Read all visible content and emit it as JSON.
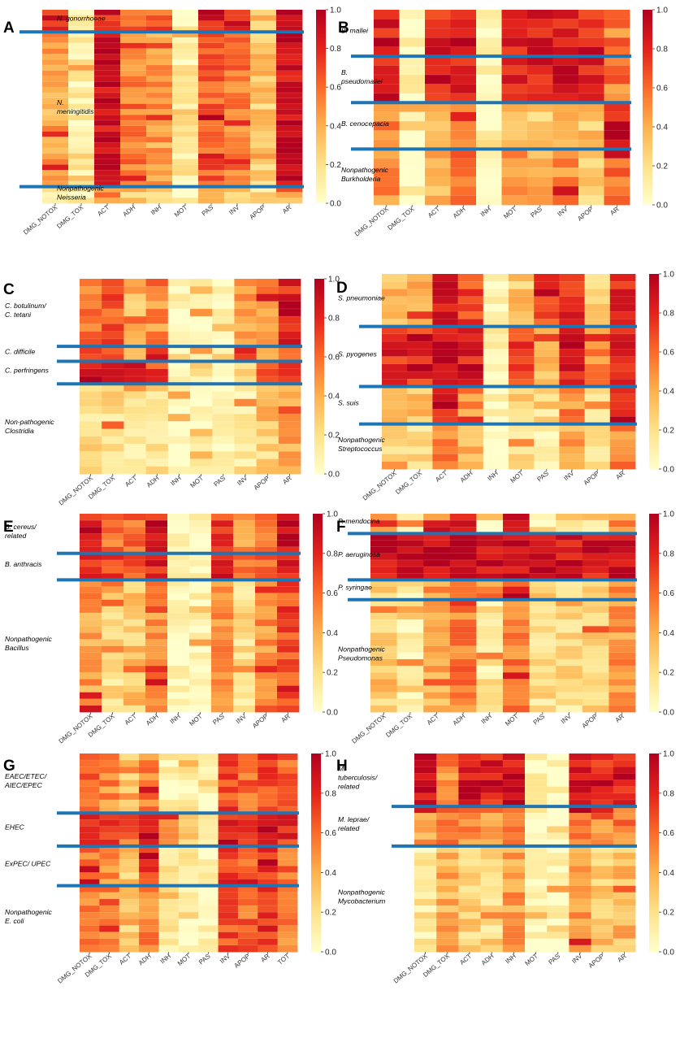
{
  "colorscale": {
    "stops": [
      "#ffffcc",
      "#fee28a",
      "#fdb14f",
      "#fb6a2a",
      "#e3221c",
      "#b1001f"
    ],
    "ticks": [
      "1.0",
      "0.8",
      "0.6",
      "0.4",
      "0.2",
      "0.0"
    ]
  },
  "separator_color": "#1f74b4",
  "chart_data": [
    {
      "type": "heatmap",
      "panel": "A",
      "columns": [
        "DMG_NOTOX",
        "DMG_TOX",
        "ACT",
        "ADH",
        "INH",
        "MOT",
        "PAS",
        "INV",
        "APOP",
        "AR"
      ],
      "value_range": [
        0,
        1
      ],
      "groups": [
        {
          "label": "N. gonorrhoeae",
          "rows": 4,
          "profile": [
            0.82,
            0.12,
            0.8,
            0.6,
            0.6,
            0.12,
            0.85,
            0.82,
            0.3,
            0.92
          ]
        },
        {
          "label": "N. meningitidis",
          "rows": 28,
          "profile": [
            0.42,
            0.1,
            0.9,
            0.55,
            0.45,
            0.12,
            0.62,
            0.55,
            0.3,
            0.9
          ]
        },
        {
          "label": "Nonpathogenic Neisseria",
          "rows": 3,
          "profile": [
            0.2,
            0.08,
            0.4,
            0.3,
            0.2,
            0.05,
            0.3,
            0.3,
            0.2,
            0.4
          ]
        }
      ]
    },
    {
      "type": "heatmap",
      "panel": "B",
      "columns": [
        "DMG_NOTOX",
        "DMG_TOX",
        "ACT",
        "ADH",
        "INH",
        "MOT",
        "PAS",
        "INV",
        "APOP",
        "AR"
      ],
      "value_range": [
        0,
        1
      ],
      "groups": [
        {
          "label": "B. mallei",
          "rows": 5,
          "profile": [
            0.82,
            0.05,
            0.8,
            0.88,
            0.05,
            0.8,
            0.85,
            0.85,
            0.75,
            0.55
          ]
        },
        {
          "label": "B. pseudomallei",
          "rows": 5,
          "profile": [
            0.85,
            0.05,
            0.82,
            0.85,
            0.05,
            0.82,
            0.85,
            0.85,
            0.8,
            0.55
          ]
        },
        {
          "label": "B. cenocepacia",
          "rows": 5,
          "profile": [
            0.5,
            0.05,
            0.4,
            0.45,
            0.05,
            0.35,
            0.3,
            0.35,
            0.3,
            0.85
          ]
        },
        {
          "label": "Nonpathogenic Burkholderia",
          "rows": 6,
          "profile": [
            0.5,
            0.05,
            0.4,
            0.55,
            0.05,
            0.5,
            0.4,
            0.5,
            0.3,
            0.6
          ]
        }
      ]
    },
    {
      "type": "heatmap",
      "panel": "C",
      "columns": [
        "DMG_NOTOX",
        "DMG_TOX",
        "ACT",
        "ADH",
        "INH",
        "MOT",
        "PAS",
        "INV",
        "APOP",
        "AR"
      ],
      "value_range": [
        0,
        1
      ],
      "groups": [
        {
          "label": "C. botulinum/ C. tetani",
          "rows": 9,
          "profile": [
            0.55,
            0.65,
            0.35,
            0.5,
            0.05,
            0.05,
            0.05,
            0.45,
            0.5,
            0.8
          ]
        },
        {
          "label": "C. difficile",
          "rows": 2,
          "profile": [
            0.65,
            0.7,
            0.2,
            0.8,
            0.05,
            0.05,
            0.05,
            0.75,
            0.3,
            0.7
          ]
        },
        {
          "label": "C. perfringens",
          "rows": 3,
          "profile": [
            0.9,
            0.9,
            0.85,
            0.7,
            0.05,
            0.05,
            0.05,
            0.25,
            0.6,
            0.75
          ]
        },
        {
          "label": "Non-pathogenic Clostridia",
          "rows": 12,
          "profile": [
            0.2,
            0.2,
            0.15,
            0.2,
            0.05,
            0.05,
            0.05,
            0.15,
            0.25,
            0.4
          ]
        }
      ]
    },
    {
      "type": "heatmap",
      "panel": "D",
      "columns": [
        "DMG_NOTOX",
        "DMG_TOX",
        "ACT",
        "ADH",
        "INH",
        "MOT",
        "PAS",
        "INV",
        "APOP",
        "AR"
      ],
      "value_range": [
        0,
        1
      ],
      "groups": [
        {
          "label": "S. pneumoniae",
          "rows": 7,
          "profile": [
            0.35,
            0.35,
            0.82,
            0.7,
            0.05,
            0.3,
            0.7,
            0.75,
            0.25,
            0.8
          ]
        },
        {
          "label": "S. pyogenes",
          "rows": 8,
          "profile": [
            0.75,
            0.75,
            0.88,
            0.8,
            0.05,
            0.75,
            0.35,
            0.85,
            0.5,
            0.8
          ]
        },
        {
          "label": "S. suis",
          "rows": 5,
          "profile": [
            0.3,
            0.3,
            0.85,
            0.5,
            0.05,
            0.25,
            0.2,
            0.5,
            0.2,
            0.75
          ]
        },
        {
          "label": "Nonpathogenic Streptococcus",
          "rows": 6,
          "profile": [
            0.2,
            0.2,
            0.5,
            0.35,
            0.05,
            0.2,
            0.15,
            0.4,
            0.15,
            0.5
          ]
        }
      ]
    },
    {
      "type": "heatmap",
      "panel": "E",
      "columns": [
        "DMG_NOTOX",
        "DMG_TOX",
        "ACT",
        "ADH",
        "INH",
        "MOT",
        "PAS",
        "INV",
        "APOP",
        "AR"
      ],
      "value_range": [
        0,
        1
      ],
      "groups": [
        {
          "label": "B. cereus/ related",
          "rows": 6,
          "profile": [
            0.8,
            0.6,
            0.6,
            0.82,
            0.05,
            0.05,
            0.7,
            0.5,
            0.6,
            0.85
          ]
        },
        {
          "label": "B. anthracis",
          "rows": 4,
          "profile": [
            0.75,
            0.7,
            0.7,
            0.8,
            0.05,
            0.05,
            0.75,
            0.55,
            0.6,
            0.82
          ]
        },
        {
          "label": "Nonpathogenic Bacillus",
          "rows": 20,
          "profile": [
            0.45,
            0.2,
            0.3,
            0.5,
            0.05,
            0.05,
            0.5,
            0.2,
            0.5,
            0.65
          ]
        }
      ]
    },
    {
      "type": "heatmap",
      "panel": "F",
      "columns": [
        "DMG_NOTOX",
        "DMG_TOX",
        "ACT",
        "ADH",
        "INH",
        "MOT",
        "PAS",
        "INV",
        "APOP",
        "AR"
      ],
      "value_range": [
        0,
        1
      ],
      "groups": [
        {
          "label": "P. mendocina",
          "rows": 3,
          "profile": [
            0.45,
            0.15,
            0.5,
            0.85,
            0.05,
            0.85,
            0.15,
            0.25,
            0.15,
            0.5
          ]
        },
        {
          "label": "P. aeruginosa",
          "rows": 7,
          "profile": [
            0.88,
            0.88,
            0.9,
            0.9,
            0.88,
            0.88,
            0.88,
            0.85,
            0.85,
            0.88
          ]
        },
        {
          "label": "P. syringae",
          "rows": 3,
          "profile": [
            0.3,
            0.15,
            0.45,
            0.6,
            0.5,
            0.7,
            0.3,
            0.2,
            0.2,
            0.5
          ]
        },
        {
          "label": "Nonpathogenic Pseudomonas",
          "rows": 17,
          "profile": [
            0.3,
            0.1,
            0.4,
            0.55,
            0.15,
            0.55,
            0.2,
            0.2,
            0.25,
            0.45
          ]
        }
      ]
    },
    {
      "type": "heatmap",
      "panel": "G",
      "columns": [
        "DMG_NOTOX",
        "DMG_TOX",
        "ACT",
        "ADH",
        "INH",
        "MOT",
        "PAS",
        "INV",
        "APOP",
        "AR",
        "TOT"
      ],
      "value_range": [
        0,
        1
      ],
      "groups": [
        {
          "label": "EAEC/ETEC/ AIEC/EPEC",
          "rows": 9,
          "profile": [
            0.6,
            0.5,
            0.3,
            0.55,
            0.1,
            0.1,
            0.05,
            0.7,
            0.6,
            0.7,
            0.6
          ]
        },
        {
          "label": "EHEC",
          "rows": 5,
          "profile": [
            0.8,
            0.8,
            0.6,
            0.8,
            0.5,
            0.3,
            0.05,
            0.8,
            0.8,
            0.8,
            0.75
          ]
        },
        {
          "label": "ExPEC/ UPEC",
          "rows": 6,
          "profile": [
            0.55,
            0.5,
            0.3,
            0.75,
            0.2,
            0.1,
            0.05,
            0.75,
            0.6,
            0.75,
            0.6
          ]
        },
        {
          "label": "Nonpathogenic E. coli",
          "rows": 10,
          "profile": [
            0.55,
            0.5,
            0.3,
            0.55,
            0.1,
            0.05,
            0.05,
            0.65,
            0.6,
            0.75,
            0.5
          ]
        }
      ]
    },
    {
      "type": "heatmap",
      "panel": "H",
      "columns": [
        "DMG_NOTOX",
        "DMG_TOX",
        "ACT",
        "ADH",
        "INH",
        "MOT",
        "PAS",
        "INV",
        "APOP",
        "AR"
      ],
      "value_range": [
        0,
        1
      ],
      "groups": [
        {
          "label": "M. tuberculosis/ related",
          "rows": 8,
          "profile": [
            0.88,
            0.5,
            0.88,
            0.82,
            0.88,
            0.05,
            0.05,
            0.88,
            0.75,
            0.78
          ]
        },
        {
          "label": "M. leprae/ related",
          "rows": 6,
          "profile": [
            0.45,
            0.55,
            0.5,
            0.5,
            0.6,
            0.05,
            0.05,
            0.6,
            0.5,
            0.55
          ]
        },
        {
          "label": "Nonpathogenic Mycobacterium",
          "rows": 16,
          "profile": [
            0.15,
            0.4,
            0.25,
            0.2,
            0.45,
            0.05,
            0.05,
            0.45,
            0.3,
            0.35
          ]
        }
      ]
    }
  ]
}
